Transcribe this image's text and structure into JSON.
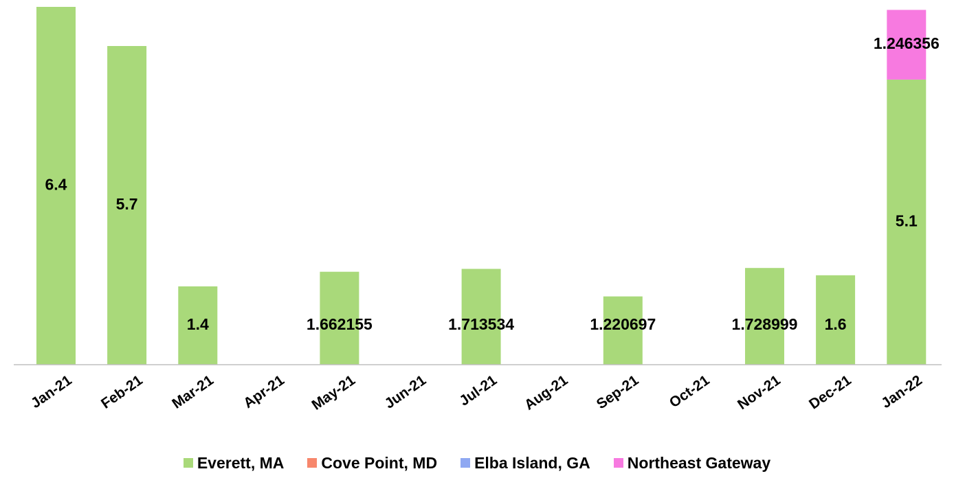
{
  "chart_data": {
    "type": "bar",
    "stacked": true,
    "categories": [
      "Jan-21",
      "Feb-21",
      "Mar-21",
      "Apr-21",
      "May-21",
      "Jun-21",
      "Jul-21",
      "Aug-21",
      "Sep-21",
      "Oct-21",
      "Nov-21",
      "Dec-21",
      "Jan-22"
    ],
    "series": [
      {
        "name": "Everett, MA",
        "color": "#a9d97a",
        "values": [
          6.4,
          5.7,
          1.4,
          0,
          1.662155,
          0,
          1.713534,
          0,
          1.220697,
          0,
          1.728999,
          1.6,
          5.1
        ],
        "labels": [
          "6.4",
          "5.7",
          "1.4",
          "",
          "1.662155",
          "",
          "1.713534",
          "",
          "1.220697",
          "",
          "1.728999",
          "1.6",
          "5.1"
        ]
      },
      {
        "name": "Cove Point, MD",
        "color": "#f7876c",
        "values": [
          0,
          0,
          0,
          0,
          0,
          0,
          0,
          0,
          0,
          0,
          0,
          0,
          0
        ],
        "labels": [
          "",
          "",
          "",
          "",
          "",
          "",
          "",
          "",
          "",
          "",
          "",
          "",
          ""
        ]
      },
      {
        "name": "Elba Island, GA",
        "color": "#8fa8f2",
        "values": [
          0,
          0,
          0,
          0,
          0,
          0,
          0,
          0,
          0,
          0,
          0,
          0,
          0
        ],
        "labels": [
          "",
          "",
          "",
          "",
          "",
          "",
          "",
          "",
          "",
          "",
          "",
          "",
          ""
        ]
      },
      {
        "name": "Northeast Gateway",
        "color": "#f77ae0",
        "values": [
          0,
          0,
          0,
          0,
          0,
          0,
          0,
          0,
          0,
          0,
          0,
          0,
          1.246356
        ],
        "labels": [
          "",
          "",
          "",
          "",
          "",
          "",
          "",
          "",
          "",
          "",
          "",
          "",
          "1.246356"
        ]
      }
    ],
    "ylim": [
      0,
      6.4
    ],
    "grid": false,
    "legend_position": "bottom",
    "title": "",
    "xlabel": "",
    "ylabel": ""
  }
}
